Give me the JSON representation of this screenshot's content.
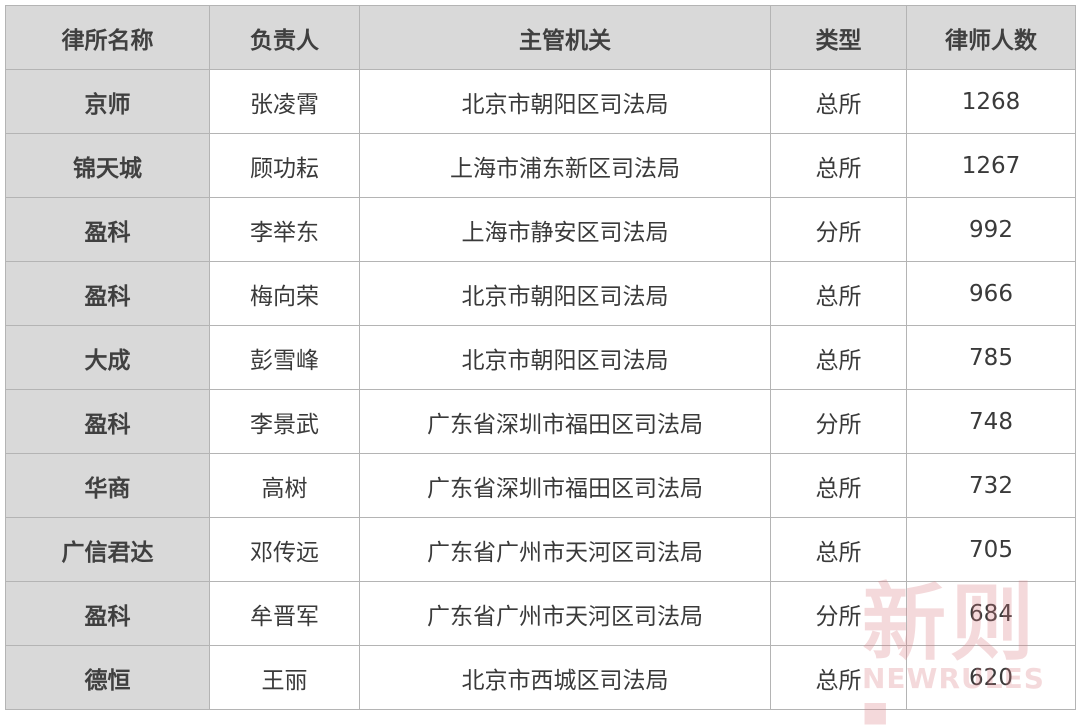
{
  "table": {
    "headers": [
      "律所名称",
      "负责人",
      "主管机关",
      "类型",
      "律师人数"
    ],
    "rows": [
      [
        "京师",
        "张凌霄",
        "北京市朝阳区司法局",
        "总所",
        "1268"
      ],
      [
        "锦天城",
        "顾功耘",
        "上海市浦东新区司法局",
        "总所",
        "1267"
      ],
      [
        "盈科",
        "李举东",
        "上海市静安区司法局",
        "分所",
        "992"
      ],
      [
        "盈科",
        "梅向荣",
        "北京市朝阳区司法局",
        "总所",
        "966"
      ],
      [
        "大成",
        "彭雪峰",
        "北京市朝阳区司法局",
        "总所",
        "785"
      ],
      [
        "盈科",
        "李景武",
        "广东省深圳市福田区司法局",
        "分所",
        "748"
      ],
      [
        "华商",
        "高树",
        "广东省深圳市福田区司法局",
        "总所",
        "732"
      ],
      [
        "广信君达",
        "邓传远",
        "广东省广州市天河区司法局",
        "总所",
        "705"
      ],
      [
        "盈科",
        "牟晋军",
        "广东省广州市天河区司法局",
        "分所",
        "684"
      ],
      [
        "德恒",
        "王丽",
        "北京市西城区司法局",
        "总所",
        "620"
      ]
    ]
  },
  "watermark": {
    "text": "新则",
    "subtext": "NEWRULES ■"
  },
  "colors": {
    "header_bg": "#d9d9d9",
    "border": "#b4b4b4",
    "watermark": "#d6787d"
  }
}
